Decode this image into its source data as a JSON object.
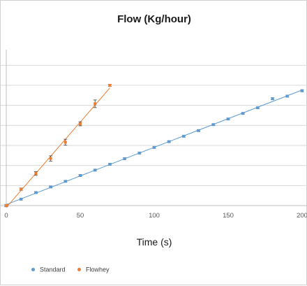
{
  "chart_data": {
    "type": "scatter",
    "title": "Flow (Kg/hour)",
    "xlabel": "Time (s)",
    "ylabel": "",
    "xlim": [
      0,
      200
    ],
    "x_ticks": [
      0,
      50,
      100,
      150,
      200
    ],
    "x_tick_labels": [
      "0",
      "50",
      "100",
      "150",
      "200"
    ],
    "ylim": [
      0,
      7.5
    ],
    "y_gridlines": [
      1,
      2,
      3,
      4,
      5,
      6,
      7
    ],
    "grid": "horizontal",
    "legend_position": "bottom",
    "series": [
      {
        "name": "Standard",
        "color": "#5b9bd5",
        "trendline": true,
        "x": [
          0,
          10,
          20,
          30,
          40,
          50,
          60,
          70,
          80,
          90,
          100,
          110,
          120,
          130,
          140,
          150,
          160,
          170,
          180,
          190,
          200
        ],
        "y": [
          0.0,
          0.32,
          0.65,
          0.93,
          1.21,
          1.5,
          1.77,
          2.06,
          2.34,
          2.62,
          2.9,
          3.19,
          3.46,
          3.74,
          4.04,
          4.32,
          4.6,
          4.88,
          5.33,
          5.46,
          5.73
        ],
        "error": [
          0.04,
          0.04,
          0.04,
          0.04,
          0.04,
          0.04,
          0.04,
          0.04,
          0.04,
          0.04,
          0.04,
          0.04,
          0.04,
          0.04,
          0.04,
          0.04,
          0.04,
          0.04,
          0.05,
          0.05,
          0.05
        ]
      },
      {
        "name": "Flowhey",
        "color": "#ed7d31",
        "trendline": true,
        "x": [
          0,
          10,
          20,
          30,
          40,
          50,
          60,
          70
        ],
        "y": [
          0.0,
          0.82,
          1.6,
          2.35,
          3.16,
          4.08,
          5.08,
          6.0
        ],
        "error": [
          0.06,
          0.06,
          0.09,
          0.13,
          0.15,
          0.1,
          0.19,
          0.05
        ]
      }
    ]
  }
}
